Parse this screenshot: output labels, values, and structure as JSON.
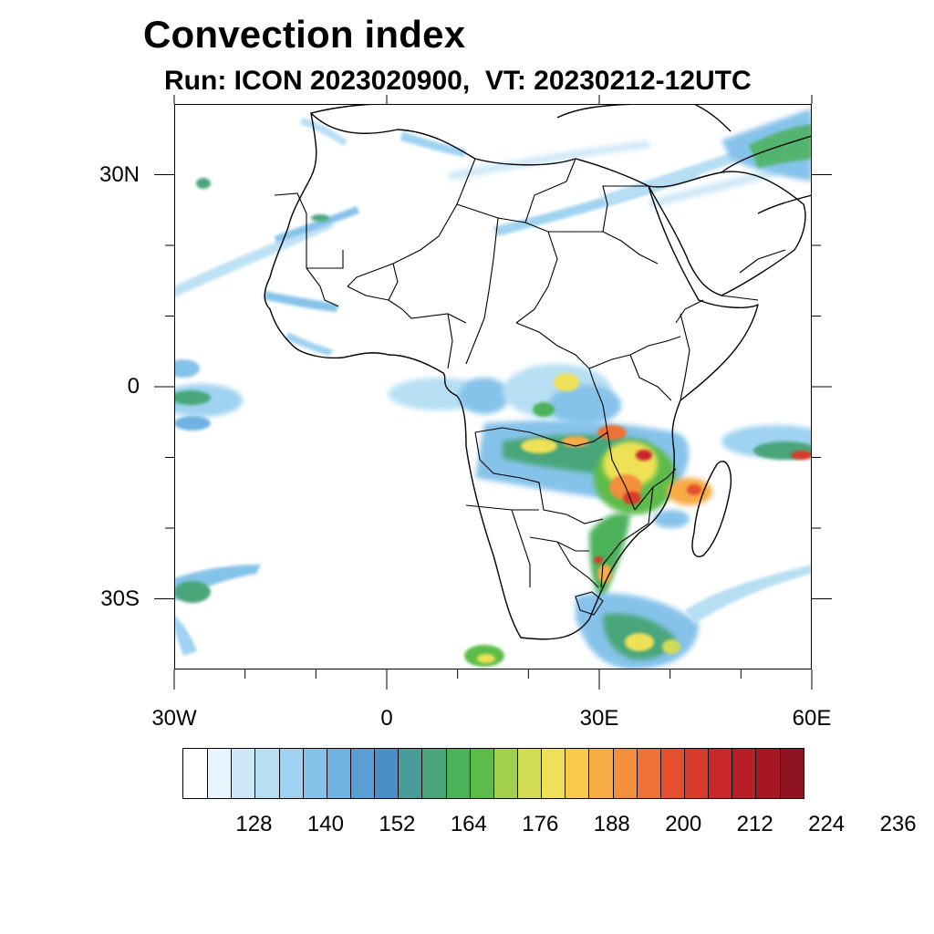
{
  "title": "Convection index",
  "subtitle": "Run: ICON 2023020900,  VT: 20230212-12UTC",
  "map": {
    "lon_range": [
      -30,
      60
    ],
    "lat_range": [
      -40,
      40
    ],
    "lon_ticks": [
      {
        "value": -30,
        "label": "30W"
      },
      {
        "value": 0,
        "label": "0"
      },
      {
        "value": 30,
        "label": "30E"
      },
      {
        "value": 60,
        "label": "60E"
      }
    ],
    "lat_ticks": [
      {
        "value": 30,
        "label": "30N"
      },
      {
        "value": 0,
        "label": "0"
      },
      {
        "value": -30,
        "label": "30S"
      }
    ],
    "minor_lon_ticks": [
      -20,
      -10,
      10,
      20,
      40,
      50
    ],
    "minor_lat_ticks": [
      20,
      10,
      -10,
      -20
    ]
  },
  "colorbar": {
    "colors": [
      "#ffffff",
      "#e8f4fb",
      "#cfe8f7",
      "#b7dff4",
      "#9fd3f1",
      "#86c3ea",
      "#6fb2e1",
      "#5a9fd4",
      "#4b8fc8",
      "#4a9c9a",
      "#4aa67a",
      "#4bb25a",
      "#5dbb4a",
      "#a3cf4f",
      "#d1dc54",
      "#efe157",
      "#f7c94c",
      "#f6ab44",
      "#f38f3c",
      "#ee7135",
      "#e4502d",
      "#d83a2c",
      "#c9282a",
      "#b71e27",
      "#a41723",
      "#8e1220"
    ],
    "labels": [
      "128",
      "140",
      "152",
      "164",
      "176",
      "188",
      "200",
      "212",
      "224",
      "236"
    ]
  }
}
